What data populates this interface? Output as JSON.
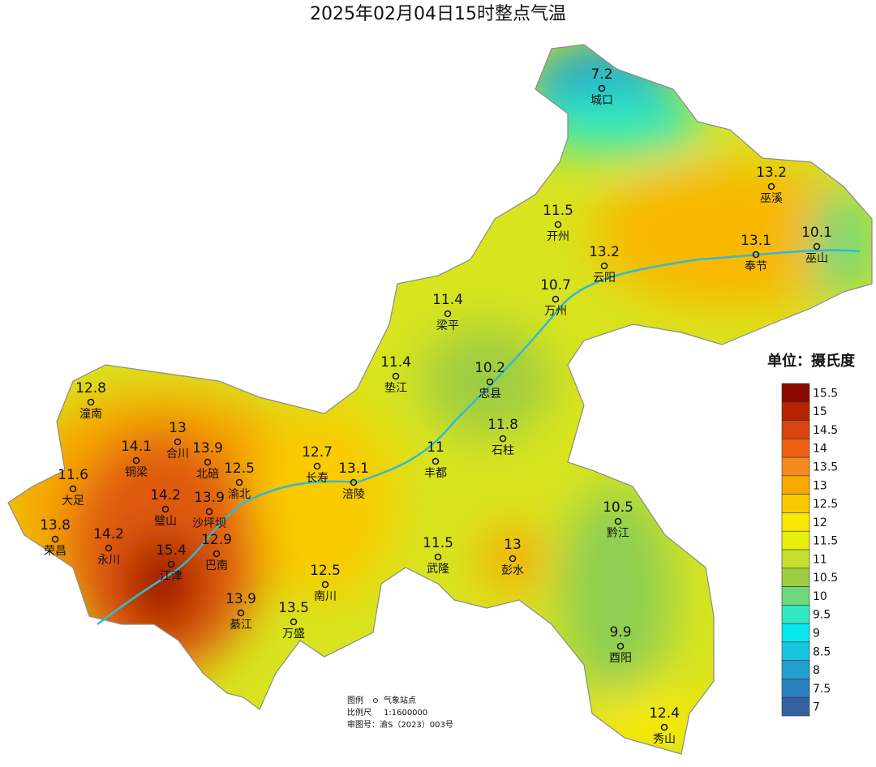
{
  "title": "2025年02月04日15时整点气温",
  "stations": [
    {
      "name": "城口",
      "value": 7.2
    },
    {
      "name": "巫溪",
      "value": 13.2
    },
    {
      "name": "开州",
      "value": 11.5
    },
    {
      "name": "巫山",
      "value": 10.1
    },
    {
      "name": "奉节",
      "value": 13.1
    },
    {
      "name": "云阳",
      "value": 13.2
    },
    {
      "name": "万州",
      "value": 10.7
    },
    {
      "name": "梁平",
      "value": 11.4
    },
    {
      "name": "垫江",
      "value": 11.4
    },
    {
      "name": "忠县",
      "value": 10.2
    },
    {
      "name": "潼南",
      "value": 12.8
    },
    {
      "name": "合川",
      "value": 13
    },
    {
      "name": "铜梁",
      "value": 14.1
    },
    {
      "name": "北碚",
      "value": 13.9
    },
    {
      "name": "渝北",
      "value": 12.5
    },
    {
      "name": "长寿",
      "value": 12.7
    },
    {
      "name": "涪陵",
      "value": 13.1
    },
    {
      "name": "丰都",
      "value": 11
    },
    {
      "name": "石柱",
      "value": 11.8
    },
    {
      "name": "大足",
      "value": 11.6
    },
    {
      "name": "璧山",
      "value": 14.2
    },
    {
      "name": "沙坪坝",
      "value": 13.9
    },
    {
      "name": "荣昌",
      "value": 13.8
    },
    {
      "name": "永川",
      "value": 14.2
    },
    {
      "name": "江津",
      "value": 15.4
    },
    {
      "name": "巴南",
      "value": 12.9
    },
    {
      "name": "南川",
      "value": 12.5
    },
    {
      "name": "綦江",
      "value": 13.9
    },
    {
      "name": "万盛",
      "value": 13.5
    },
    {
      "name": "武隆",
      "value": 11.5
    },
    {
      "name": "彭水",
      "value": 13
    },
    {
      "name": "黔江",
      "value": 10.5
    },
    {
      "name": "酉阳",
      "value": 9.9
    },
    {
      "name": "秀山",
      "value": 12.4
    }
  ],
  "colorbar": {
    "title": "单位：摄氏度",
    "levels": [
      15.5,
      15,
      14.5,
      14,
      13.5,
      13,
      12.5,
      12,
      11.5,
      11,
      10.5,
      10,
      9.5,
      9,
      8.5,
      8,
      7.5,
      7
    ],
    "colors": [
      "#8b0a00",
      "#b52300",
      "#d94410",
      "#ef6212",
      "#f58a1e",
      "#f8aa00",
      "#f9cb00",
      "#f9e900",
      "#e6f00a",
      "#c7df2e",
      "#9fcd42",
      "#6fd87a",
      "#33e8c0",
      "#08e8ec",
      "#18c6e0",
      "#239fcf",
      "#2a80bf",
      "#3561a0"
    ]
  },
  "legend": {
    "label": "图例",
    "symbol_name": "气象站点",
    "scale_label": "比例尺",
    "scale": "1:1600000",
    "approval": "审图号：渝S（2023）003号"
  }
}
